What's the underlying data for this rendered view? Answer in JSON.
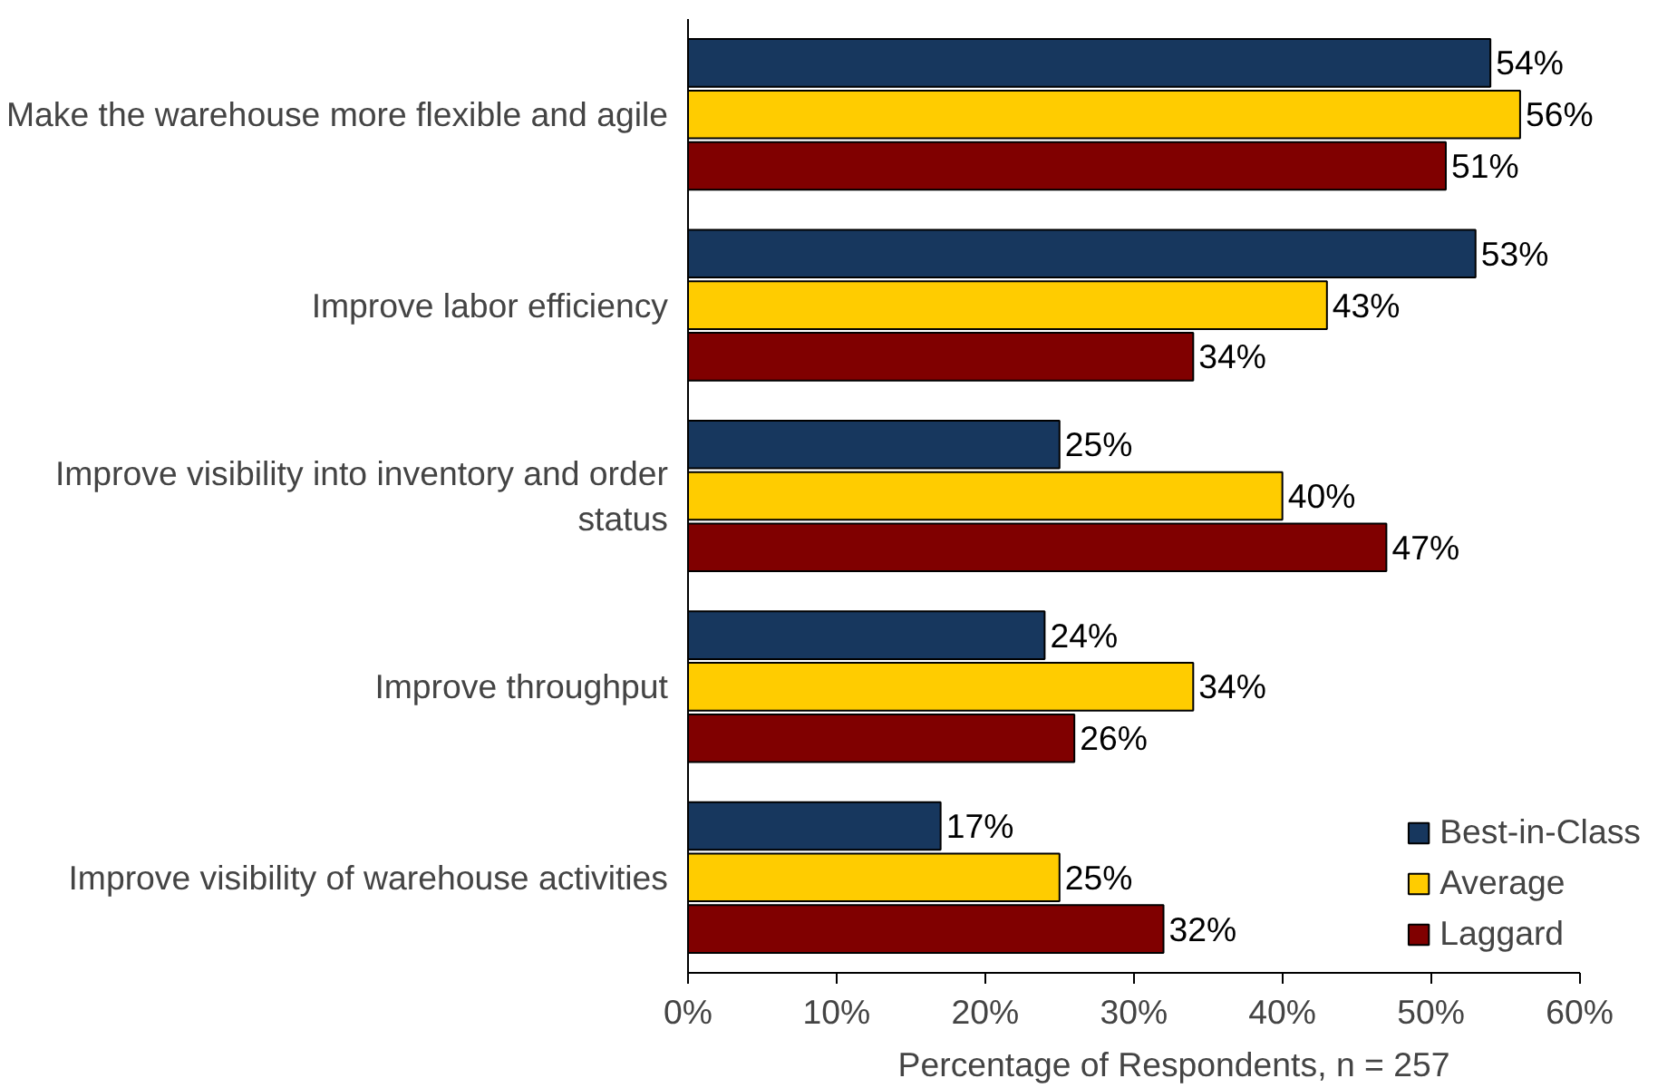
{
  "chart_data": {
    "type": "bar",
    "orientation": "horizontal",
    "xlabel": "Percentage of Respondents, n = 257",
    "categories": [
      "Make the warehouse more flexible and agile",
      "Improve labor efficiency",
      "Improve visibility into inventory and order status",
      "Improve throughput",
      "Improve visibility of warehouse activities"
    ],
    "series": [
      {
        "name": "Best-in-Class",
        "color": "#17375e",
        "values": [
          54,
          53,
          25,
          24,
          17
        ],
        "value_labels": [
          "54%",
          "53%",
          "25%",
          "24%",
          "17%"
        ]
      },
      {
        "name": "Average",
        "color": "#ffcc00",
        "values": [
          56,
          43,
          40,
          34,
          25
        ],
        "value_labels": [
          "56%",
          "43%",
          "40%",
          "34%",
          "25%"
        ]
      },
      {
        "name": "Laggard",
        "color": "#800000",
        "values": [
          51,
          34,
          47,
          26,
          32
        ],
        "value_labels": [
          "51%",
          "34%",
          "47%",
          "26%",
          "32%"
        ]
      }
    ],
    "xlim": [
      0,
      60
    ],
    "xticks": [
      {
        "value": 0,
        "label": "0%"
      },
      {
        "value": 10,
        "label": "10%"
      },
      {
        "value": 20,
        "label": "20%"
      },
      {
        "value": 30,
        "label": "30%"
      },
      {
        "value": 40,
        "label": "40%"
      },
      {
        "value": 50,
        "label": "50%"
      },
      {
        "value": 60,
        "label": "60%"
      }
    ],
    "grid": false,
    "legend": "bottom right"
  }
}
